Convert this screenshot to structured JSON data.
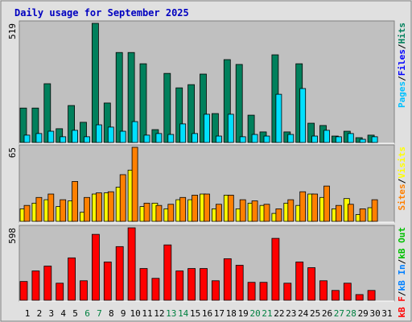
{
  "title": "Daily usage for September 2025",
  "x_axis": {
    "categories": [
      "1",
      "2",
      "3",
      "4",
      "5",
      "6",
      "7",
      "8",
      "9",
      "10",
      "11",
      "12",
      "13",
      "14",
      "15",
      "16",
      "17",
      "18",
      "19",
      "20",
      "21",
      "22",
      "23",
      "24",
      "25",
      "26",
      "27",
      "28",
      "29",
      "30",
      "31"
    ],
    "colors": [
      "#000000",
      "#000000",
      "#000000",
      "#000000",
      "#000000",
      "#008040",
      "#008040",
      "#000000",
      "#000000",
      "#000000",
      "#000000",
      "#000000",
      "#008040",
      "#008040",
      "#000000",
      "#000000",
      "#000000",
      "#000000",
      "#000000",
      "#008040",
      "#008040",
      "#000000",
      "#000000",
      "#000000",
      "#000000",
      "#000000",
      "#008040",
      "#008040",
      "#000000",
      "#000000",
      "#000000"
    ]
  },
  "chart_data": [
    {
      "type": "bar",
      "ylim": [
        0,
        519
      ],
      "yticks": [
        519
      ],
      "legend": [
        {
          "text": "Pages",
          "color": "#00c0ff"
        },
        {
          "text": "/",
          "color": "#000000"
        },
        {
          "text": "Files",
          "color": "#0000ff"
        },
        {
          "text": "/",
          "color": "#000000"
        },
        {
          "text": "Hits",
          "color": "#00805c"
        }
      ],
      "series": [
        {
          "color": "#00805c",
          "values": [
            150,
            150,
            256,
            60,
            161,
            88,
            519,
            172,
            392,
            392,
            343,
            56,
            301,
            238,
            252,
            298,
            126,
            361,
            340,
            119,
            46,
            382,
            46,
            343,
            84,
            74,
            28,
            49,
            21,
            32,
            null
          ]
        },
        {
          "color": "#00e0ff",
          "values": [
            32,
            39,
            49,
            25,
            53,
            25,
            77,
            67,
            49,
            91,
            32,
            39,
            35,
            81,
            39,
            123,
            28,
            123,
            25,
            35,
            28,
            210,
            35,
            235,
            28,
            53,
            25,
            39,
            14,
            25,
            null
          ]
        }
      ]
    },
    {
      "type": "bar",
      "ylim": [
        0,
        65
      ],
      "yticks": [
        65
      ],
      "legend": [
        {
          "text": "Sites",
          "color": "#ff8000"
        },
        {
          "text": "/",
          "color": "#000000"
        },
        {
          "text": "Visits",
          "color": "#ffff00"
        }
      ],
      "series": [
        {
          "color": "#ffff00",
          "values": [
            11,
            16,
            19,
            13,
            18,
            8,
            24,
            25,
            30,
            45,
            13,
            16,
            11,
            19,
            19,
            24,
            11,
            23,
            11,
            16,
            14,
            7,
            16,
            14,
            24,
            21,
            11,
            20,
            6,
            12,
            null
          ]
        },
        {
          "color": "#ff8000",
          "values": [
            14,
            21,
            24,
            19,
            35,
            21,
            25,
            26,
            41,
            65,
            16,
            14,
            15,
            21,
            23,
            24,
            15,
            23,
            19,
            18,
            15,
            11,
            19,
            26,
            24,
            31,
            14,
            15,
            11,
            19,
            null
          ]
        }
      ]
    },
    {
      "type": "bar",
      "ylim": [
        0,
        598
      ],
      "yticks": [
        598
      ],
      "legend": [
        {
          "text": "kB F",
          "color": "#ff0000"
        },
        {
          "text": "/",
          "color": "#000000"
        },
        {
          "text": "kB In",
          "color": "#0080ff"
        },
        {
          "text": "/",
          "color": "#000000"
        },
        {
          "text": "kB Out",
          "color": "#00c000"
        }
      ],
      "series": [
        {
          "color": "#ff0000",
          "values": [
            155,
            242,
            282,
            141,
            350,
            161,
            544,
            316,
            443,
            598,
            262,
            181,
            457,
            242,
            262,
            262,
            161,
            343,
            289,
            148,
            148,
            511,
            141,
            316,
            269,
            161,
            81,
            141,
            47,
            81,
            null
          ]
        }
      ]
    }
  ]
}
